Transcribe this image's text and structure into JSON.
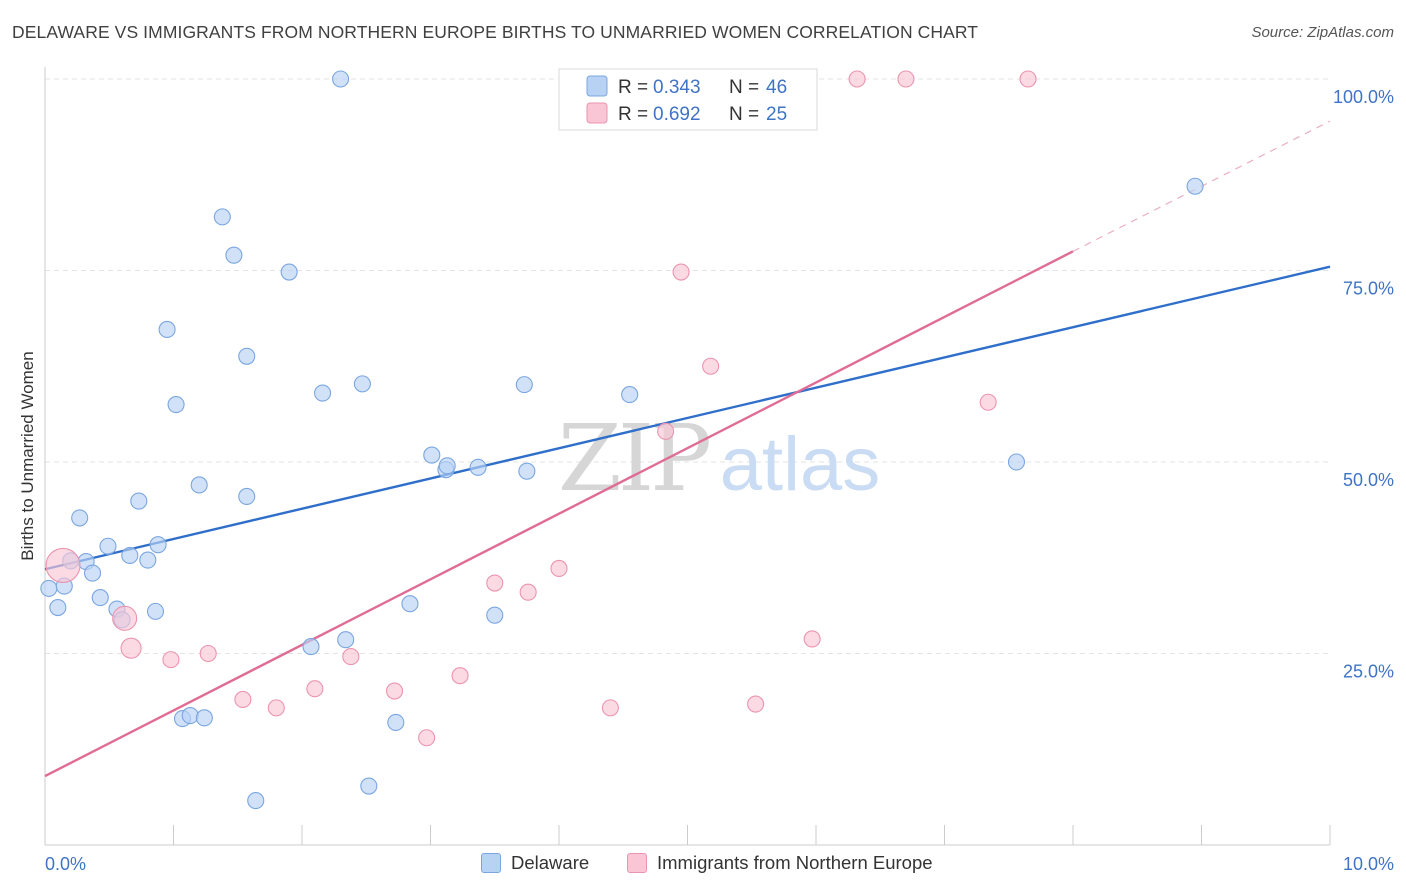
{
  "title": "DELAWARE VS IMMIGRANTS FROM NORTHERN EUROPE BIRTHS TO UNMARRIED WOMEN CORRELATION CHART",
  "source": "Source: ZipAtlas.com",
  "watermark": {
    "zip": "ZIP",
    "atlas": "atlas"
  },
  "colors": {
    "blue_fill": "#b8d2f4",
    "blue_stroke": "#7aa6e0",
    "blue_line": "#2f6fca",
    "pink_fill": "#f9c6d6",
    "pink_stroke": "#eb94b0",
    "pink_line": "#e06c95",
    "tick_text": "#3f74c4"
  },
  "legend": {
    "r_label": "R =",
    "n_label": "N =",
    "items": [
      {
        "r": "0.343",
        "n": "46"
      },
      {
        "r": "0.692",
        "n": "25"
      }
    ]
  },
  "chart_data": {
    "type": "scatter",
    "title": "DELAWARE VS IMMIGRANTS FROM NORTHERN EUROPE BIRTHS TO UNMARRIED WOMEN CORRELATION CHART",
    "xlabel": "",
    "ylabel": "Births to Unmarried Women",
    "xlim": [
      0,
      10
    ],
    "ylim": [
      0,
      100
    ],
    "x_tick_labels": [
      "0.0%",
      "10.0%"
    ],
    "y_ticks": [
      25,
      50,
      75,
      100
    ],
    "y_tick_labels": [
      "25.0%",
      "50.0%",
      "75.0%",
      "100.0%"
    ],
    "legend_position": "top-center",
    "grid": true,
    "series": [
      {
        "name": "Delaware",
        "color": "#b8d2f4",
        "points": [
          [
            0.03,
            33.5
          ],
          [
            0.1,
            31.0
          ],
          [
            0.15,
            33.8
          ],
          [
            0.2,
            37.1
          ],
          [
            0.27,
            42.7
          ],
          [
            0.32,
            37.0
          ],
          [
            0.37,
            35.5
          ],
          [
            0.43,
            32.3
          ],
          [
            0.49,
            39.0
          ],
          [
            0.56,
            30.8
          ],
          [
            0.6,
            29.4
          ],
          [
            0.66,
            37.8
          ],
          [
            0.73,
            44.9
          ],
          [
            0.8,
            37.2
          ],
          [
            0.86,
            30.5
          ],
          [
            0.88,
            39.2
          ],
          [
            0.95,
            67.3
          ],
          [
            1.02,
            57.5
          ],
          [
            1.07,
            16.5
          ],
          [
            1.13,
            16.9
          ],
          [
            1.2,
            47.0
          ],
          [
            1.24,
            16.6
          ],
          [
            1.38,
            82.0
          ],
          [
            1.47,
            77.0
          ],
          [
            1.57,
            63.8
          ],
          [
            1.57,
            45.5
          ],
          [
            1.64,
            5.8
          ],
          [
            1.9,
            74.8
          ],
          [
            2.07,
            25.9
          ],
          [
            2.16,
            59.0
          ],
          [
            2.3,
            100.0
          ],
          [
            2.34,
            26.8
          ],
          [
            2.47,
            60.2
          ],
          [
            2.52,
            7.7
          ],
          [
            2.73,
            16.0
          ],
          [
            2.84,
            31.5
          ],
          [
            3.01,
            50.9
          ],
          [
            3.12,
            49.0
          ],
          [
            3.13,
            49.5
          ],
          [
            3.37,
            49.3
          ],
          [
            3.5,
            30.0
          ],
          [
            3.73,
            60.1
          ],
          [
            3.75,
            48.8
          ],
          [
            4.55,
            58.8
          ],
          [
            7.56,
            50.0
          ],
          [
            8.95,
            86.0
          ]
        ]
      },
      {
        "name": "Immigrants from Northern Europe",
        "color": "#f9c6d6",
        "points": [
          [
            0.14,
            36.5
          ],
          [
            0.62,
            29.6
          ],
          [
            0.67,
            25.7
          ],
          [
            0.98,
            24.2
          ],
          [
            1.27,
            25.0
          ],
          [
            1.54,
            19.0
          ],
          [
            1.8,
            17.9
          ],
          [
            2.1,
            20.4
          ],
          [
            2.38,
            24.6
          ],
          [
            2.72,
            20.1
          ],
          [
            2.97,
            14.0
          ],
          [
            3.23,
            22.1
          ],
          [
            3.5,
            34.2
          ],
          [
            3.76,
            33.0
          ],
          [
            4.0,
            36.1
          ],
          [
            4.4,
            17.9
          ],
          [
            4.83,
            54.0
          ],
          [
            4.95,
            74.8
          ],
          [
            5.18,
            62.5
          ],
          [
            5.53,
            18.4
          ],
          [
            5.97,
            26.9
          ],
          [
            6.32,
            100.0
          ],
          [
            6.7,
            100.0
          ],
          [
            7.34,
            57.8
          ],
          [
            7.65,
            100.0
          ]
        ]
      }
    ],
    "trend_lines": [
      {
        "series": "Delaware",
        "x": [
          0,
          10
        ],
        "y": [
          36.0,
          75.5
        ]
      },
      {
        "series": "Immigrants from Northern Europe",
        "x": [
          0,
          8.0
        ],
        "y": [
          9.0,
          77.5
        ],
        "dashed_extension_to": [
          10,
          94.5
        ]
      }
    ]
  }
}
